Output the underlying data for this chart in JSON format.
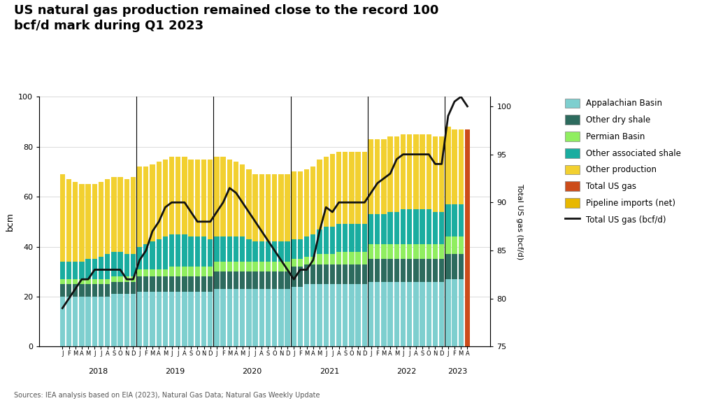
{
  "title": "US natural gas production remained close to the record 100\nbcf/d mark during Q1 2023",
  "source": "Sources: IEA analysis based on EIA (2023), Natural Gas Data; Natural Gas Weekly Update",
  "ylabel_left": "bcm",
  "ylabel_right": "Total US gas (bcf/d)",
  "ylim_left": [
    0,
    100
  ],
  "ylim_right": [
    75,
    101
  ],
  "yticks_left": [
    0,
    20,
    40,
    60,
    80,
    100
  ],
  "yticks_right": [
    75,
    80,
    85,
    90,
    95,
    100
  ],
  "background_color": "#ffffff",
  "colors": {
    "appalachian": "#7ecfcf",
    "other_dry_shale": "#2d6b5e",
    "permian": "#90ee60",
    "other_assoc_shale": "#1aada0",
    "other_production": "#f2d030",
    "total_us_gas": "#cc4c1a",
    "pipeline_imports": "#e8b800",
    "line": "#111111"
  },
  "months_per_year": [
    "J",
    "F",
    "M",
    "A",
    "M",
    "J",
    "J",
    "A",
    "S",
    "O",
    "N",
    "D"
  ],
  "years": [
    2018,
    2019,
    2020,
    2021,
    2022
  ],
  "partial_months_2023": [
    "J",
    "F",
    "M",
    "A"
  ],
  "appalachian_basin": [
    20,
    20,
    20,
    20,
    20,
    20,
    20,
    20,
    21,
    21,
    21,
    21,
    22,
    22,
    22,
    22,
    22,
    22,
    22,
    22,
    22,
    22,
    22,
    22,
    23,
    23,
    23,
    23,
    23,
    23,
    23,
    23,
    23,
    23,
    23,
    23,
    24,
    24,
    25,
    25,
    25,
    25,
    25,
    25,
    25,
    25,
    25,
    25,
    26,
    26,
    26,
    26,
    26,
    26,
    26,
    26,
    26,
    26,
    26,
    26,
    27,
    27,
    27,
    27
  ],
  "other_dry_shale": [
    5,
    5,
    5,
    5,
    5,
    5,
    5,
    5,
    5,
    5,
    5,
    5,
    6,
    6,
    6,
    6,
    6,
    6,
    6,
    6,
    6,
    6,
    6,
    6,
    7,
    7,
    7,
    7,
    7,
    7,
    7,
    7,
    7,
    7,
    7,
    7,
    8,
    8,
    8,
    8,
    8,
    8,
    8,
    8,
    8,
    8,
    8,
    8,
    9,
    9,
    9,
    9,
    9,
    9,
    9,
    9,
    9,
    9,
    9,
    9,
    10,
    10,
    10,
    10
  ],
  "permian_basin": [
    2,
    2,
    2,
    2,
    2,
    2,
    2,
    2,
    2,
    2,
    2,
    2,
    3,
    3,
    3,
    3,
    3,
    4,
    4,
    4,
    4,
    4,
    4,
    4,
    4,
    4,
    4,
    4,
    4,
    4,
    4,
    4,
    4,
    4,
    4,
    4,
    3,
    3,
    3,
    3,
    4,
    4,
    4,
    5,
    5,
    5,
    5,
    5,
    6,
    6,
    6,
    6,
    6,
    6,
    6,
    6,
    6,
    6,
    6,
    6,
    7,
    7,
    7,
    7
  ],
  "other_assoc_shale": [
    7,
    7,
    7,
    7,
    8,
    8,
    9,
    10,
    10,
    10,
    9,
    9,
    9,
    10,
    11,
    12,
    13,
    13,
    13,
    13,
    12,
    12,
    12,
    11,
    10,
    10,
    10,
    10,
    10,
    9,
    8,
    8,
    8,
    8,
    8,
    8,
    8,
    8,
    8,
    9,
    10,
    11,
    11,
    11,
    11,
    11,
    11,
    11,
    12,
    12,
    12,
    13,
    13,
    14,
    14,
    14,
    14,
    14,
    13,
    13,
    13,
    13,
    13,
    13
  ],
  "other_production": [
    35,
    33,
    32,
    31,
    30,
    30,
    30,
    30,
    30,
    30,
    30,
    31,
    32,
    31,
    31,
    31,
    31,
    31,
    31,
    31,
    31,
    31,
    31,
    32,
    32,
    32,
    31,
    30,
    29,
    28,
    27,
    27,
    27,
    27,
    27,
    27,
    27,
    27,
    27,
    27,
    28,
    28,
    29,
    29,
    29,
    29,
    29,
    29,
    30,
    30,
    30,
    30,
    30,
    30,
    30,
    30,
    30,
    30,
    30,
    30,
    31,
    30,
    30,
    30
  ],
  "line_values_bcfd": [
    79.0,
    80.0,
    81.0,
    82.0,
    82.0,
    83.0,
    83.0,
    83.0,
    83.0,
    83.0,
    82.0,
    82.0,
    84.0,
    85.0,
    87.0,
    88.0,
    89.5,
    90.0,
    90.0,
    90.0,
    89.0,
    88.0,
    88.0,
    88.0,
    89.0,
    90.0,
    91.5,
    91.0,
    90.0,
    89.0,
    88.0,
    87.0,
    86.0,
    85.0,
    84.0,
    83.0,
    82.0,
    83.0,
    83.0,
    84.0,
    87.0,
    89.5,
    89.0,
    90.0,
    90.0,
    90.0,
    90.0,
    90.0,
    91.0,
    92.0,
    92.5,
    93.0,
    94.5,
    95.0,
    95.0,
    95.0,
    95.0,
    95.0,
    94.0,
    94.0,
    99.0,
    100.5,
    101.0,
    100.0
  ]
}
